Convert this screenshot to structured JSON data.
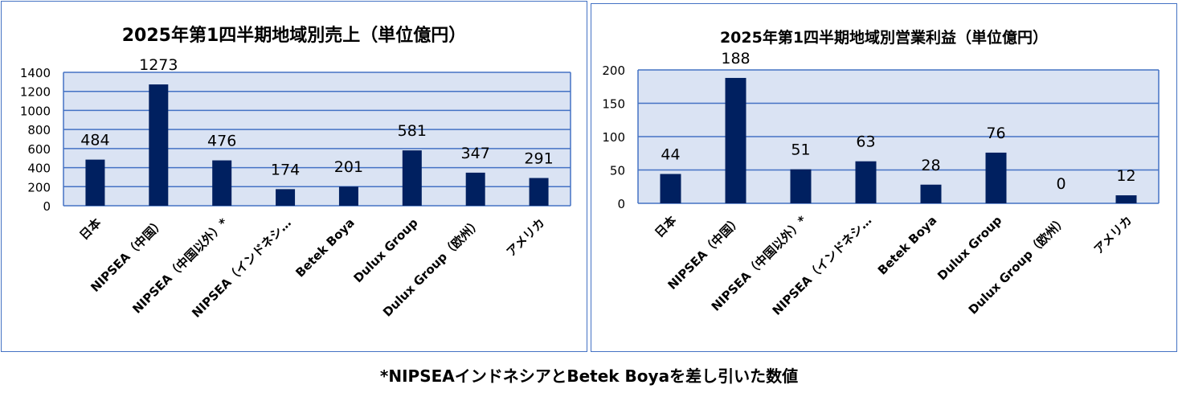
{
  "chart_data": [
    {
      "type": "bar",
      "title": "2025年第1四半期地域別売上（単位億円）",
      "categories": [
        "日本",
        "NIPSEA（中国）",
        "NIPSEA（中国以外）*",
        "NIPSEA（インドネシ…",
        "Betek Boya",
        "Dulux Group",
        "Dulux Group（欧州）",
        "アメリカ"
      ],
      "values": [
        484,
        1273,
        476,
        174,
        201,
        581,
        347,
        291
      ],
      "y_ticks": [
        0,
        200,
        400,
        600,
        800,
        1000,
        1200,
        1400
      ],
      "ylim": [
        0,
        1400
      ],
      "xlabel": "",
      "ylabel": "",
      "grid": true,
      "legend": "none",
      "bar_color": "#002060",
      "plot_background": "#dae3f3",
      "grid_color": "#4472c4"
    },
    {
      "type": "bar",
      "title": "2025年第1四半期地域別営業利益（単位億円）",
      "categories": [
        "日本",
        "NIPSEA（中国）",
        "NIPSEA（中国以外）*",
        "NIPSEA（インドネシ…",
        "Betek Boya",
        "Dulux Group",
        "Dulux Group（欧州）",
        "アメリカ"
      ],
      "values": [
        44,
        188,
        51,
        63,
        28,
        76,
        0,
        12
      ],
      "y_ticks": [
        0,
        50,
        100,
        150,
        200
      ],
      "ylim": [
        0,
        200
      ],
      "xlabel": "",
      "ylabel": "",
      "grid": true,
      "legend": "none",
      "bar_color": "#002060",
      "plot_background": "#dae3f3",
      "grid_color": "#4472c4"
    }
  ],
  "footnote": "*NIPSEAインドネシアとBetek Boyaを差し引いた数値"
}
